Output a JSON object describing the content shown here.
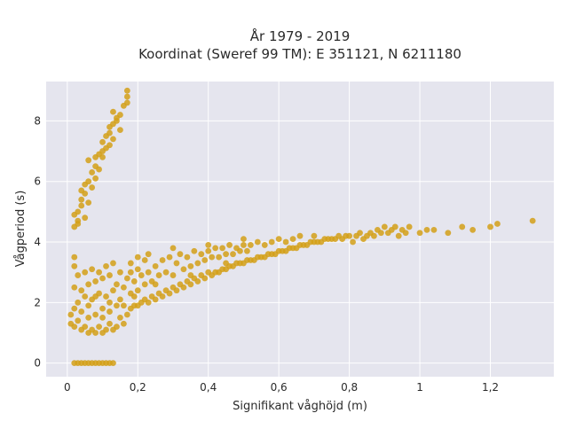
{
  "chart_data": {
    "type": "scatter",
    "title_line1": "År 1979 - 2019",
    "title_line2": "Koordinat (Sweref 99 TM): E 351121, N 6211180",
    "xlabel": "Signifikant våghöjd (m)",
    "ylabel": "Vågperiod (s)",
    "xlim": [
      -0.06,
      1.38
    ],
    "ylim": [
      -0.45,
      9.3
    ],
    "x_ticks": [
      {
        "value": 0,
        "label": "0"
      },
      {
        "value": 0.2,
        "label": "0,2"
      },
      {
        "value": 0.4,
        "label": "0,4"
      },
      {
        "value": 0.6,
        "label": "0,6"
      },
      {
        "value": 0.8,
        "label": "0,8"
      },
      {
        "value": 1.0,
        "label": "1"
      },
      {
        "value": 1.2,
        "label": "1,2"
      }
    ],
    "y_ticks": [
      {
        "value": 0,
        "label": "0"
      },
      {
        "value": 2,
        "label": "2"
      },
      {
        "value": 4,
        "label": "4"
      },
      {
        "value": 6,
        "label": "6"
      },
      {
        "value": 8,
        "label": "8"
      }
    ],
    "grid": true,
    "marker_color": "#D4A017",
    "plot_background": "#E5E5EE",
    "series": [
      {
        "points": [
          [
            0.02,
            4.5
          ],
          [
            0.02,
            4.9
          ],
          [
            0.03,
            5.0
          ],
          [
            0.03,
            4.7
          ],
          [
            0.04,
            5.2
          ],
          [
            0.04,
            5.4
          ],
          [
            0.05,
            5.6
          ],
          [
            0.05,
            5.9
          ],
          [
            0.06,
            6.0
          ],
          [
            0.06,
            5.3
          ],
          [
            0.07,
            6.3
          ],
          [
            0.07,
            5.8
          ],
          [
            0.08,
            6.5
          ],
          [
            0.08,
            6.1
          ],
          [
            0.09,
            6.9
          ],
          [
            0.09,
            6.4
          ],
          [
            0.1,
            7.0
          ],
          [
            0.1,
            7.3
          ],
          [
            0.11,
            7.5
          ],
          [
            0.11,
            7.1
          ],
          [
            0.12,
            7.6
          ],
          [
            0.12,
            7.8
          ],
          [
            0.13,
            7.9
          ],
          [
            0.13,
            7.4
          ],
          [
            0.14,
            8.0
          ],
          [
            0.14,
            8.1
          ],
          [
            0.15,
            8.2
          ],
          [
            0.15,
            7.7
          ],
          [
            0.16,
            8.5
          ],
          [
            0.17,
            8.6
          ],
          [
            0.17,
            8.8
          ],
          [
            0.17,
            9.0
          ],
          [
            0.04,
            5.7
          ],
          [
            0.06,
            6.7
          ],
          [
            0.08,
            6.8
          ],
          [
            0.05,
            4.8
          ],
          [
            0.03,
            4.6
          ],
          [
            0.1,
            6.8
          ],
          [
            0.12,
            7.2
          ],
          [
            0.13,
            8.3
          ],
          [
            0.02,
            0.0
          ],
          [
            0.03,
            0.0
          ],
          [
            0.04,
            0.0
          ],
          [
            0.05,
            0.0
          ],
          [
            0.06,
            0.0
          ],
          [
            0.07,
            0.0
          ],
          [
            0.08,
            0.0
          ],
          [
            0.09,
            0.0
          ],
          [
            0.1,
            0.0
          ],
          [
            0.11,
            0.0
          ],
          [
            0.12,
            0.0
          ],
          [
            0.13,
            0.0
          ],
          [
            0.01,
            1.6
          ],
          [
            0.01,
            1.3
          ],
          [
            0.02,
            1.2
          ],
          [
            0.02,
            1.8
          ],
          [
            0.02,
            2.5
          ],
          [
            0.02,
            3.2
          ],
          [
            0.02,
            3.5
          ],
          [
            0.03,
            2.0
          ],
          [
            0.03,
            1.4
          ],
          [
            0.03,
            2.9
          ],
          [
            0.04,
            1.1
          ],
          [
            0.04,
            1.7
          ],
          [
            0.04,
            2.4
          ],
          [
            0.05,
            1.2
          ],
          [
            0.05,
            2.2
          ],
          [
            0.05,
            3.0
          ],
          [
            0.06,
            1.0
          ],
          [
            0.06,
            1.9
          ],
          [
            0.06,
            2.6
          ],
          [
            0.07,
            1.1
          ],
          [
            0.07,
            2.1
          ],
          [
            0.07,
            3.1
          ],
          [
            0.08,
            1.0
          ],
          [
            0.08,
            1.6
          ],
          [
            0.08,
            2.7
          ],
          [
            0.09,
            1.2
          ],
          [
            0.09,
            2.3
          ],
          [
            0.09,
            3.0
          ],
          [
            0.1,
            1.0
          ],
          [
            0.1,
            1.8
          ],
          [
            0.1,
            2.8
          ],
          [
            0.11,
            1.1
          ],
          [
            0.11,
            2.2
          ],
          [
            0.11,
            3.2
          ],
          [
            0.12,
            1.3
          ],
          [
            0.12,
            2.0
          ],
          [
            0.12,
            2.9
          ],
          [
            0.13,
            1.1
          ],
          [
            0.13,
            2.4
          ],
          [
            0.13,
            3.3
          ],
          [
            0.14,
            1.2
          ],
          [
            0.14,
            2.6
          ],
          [
            0.15,
            1.5
          ],
          [
            0.15,
            2.1
          ],
          [
            0.15,
            3.0
          ],
          [
            0.16,
            1.3
          ],
          [
            0.16,
            2.5
          ],
          [
            0.17,
            1.6
          ],
          [
            0.17,
            2.8
          ],
          [
            0.18,
            1.8
          ],
          [
            0.18,
            2.3
          ],
          [
            0.18,
            3.3
          ],
          [
            0.19,
            1.9
          ],
          [
            0.19,
            2.7
          ],
          [
            0.2,
            1.9
          ],
          [
            0.2,
            2.4
          ],
          [
            0.2,
            3.1
          ],
          [
            0.21,
            2.0
          ],
          [
            0.21,
            2.9
          ],
          [
            0.22,
            2.1
          ],
          [
            0.22,
            2.6
          ],
          [
            0.22,
            3.4
          ],
          [
            0.23,
            2.0
          ],
          [
            0.23,
            3.0
          ],
          [
            0.24,
            2.2
          ],
          [
            0.24,
            2.7
          ],
          [
            0.25,
            2.1
          ],
          [
            0.25,
            3.2
          ],
          [
            0.26,
            2.3
          ],
          [
            0.26,
            2.9
          ],
          [
            0.27,
            2.2
          ],
          [
            0.27,
            3.4
          ],
          [
            0.28,
            2.4
          ],
          [
            0.28,
            3.0
          ],
          [
            0.29,
            2.3
          ],
          [
            0.29,
            3.5
          ],
          [
            0.3,
            2.5
          ],
          [
            0.3,
            2.9
          ],
          [
            0.31,
            2.4
          ],
          [
            0.31,
            3.3
          ],
          [
            0.32,
            2.6
          ],
          [
            0.32,
            3.6
          ],
          [
            0.33,
            2.5
          ],
          [
            0.33,
            3.1
          ],
          [
            0.34,
            2.7
          ],
          [
            0.34,
            3.5
          ],
          [
            0.35,
            2.6
          ],
          [
            0.35,
            3.2
          ],
          [
            0.36,
            2.8
          ],
          [
            0.36,
            3.7
          ],
          [
            0.37,
            2.7
          ],
          [
            0.37,
            3.3
          ],
          [
            0.38,
            2.9
          ],
          [
            0.38,
            3.6
          ],
          [
            0.39,
            2.8
          ],
          [
            0.39,
            3.4
          ],
          [
            0.4,
            3.0
          ],
          [
            0.4,
            3.7
          ],
          [
            0.41,
            2.9
          ],
          [
            0.41,
            3.5
          ],
          [
            0.42,
            3.0
          ],
          [
            0.42,
            3.8
          ],
          [
            0.43,
            3.0
          ],
          [
            0.43,
            3.5
          ],
          [
            0.44,
            3.1
          ],
          [
            0.44,
            3.8
          ],
          [
            0.45,
            3.1
          ],
          [
            0.45,
            3.6
          ],
          [
            0.46,
            3.2
          ],
          [
            0.46,
            3.9
          ],
          [
            0.47,
            3.2
          ],
          [
            0.47,
            3.6
          ],
          [
            0.48,
            3.3
          ],
          [
            0.48,
            3.8
          ],
          [
            0.49,
            3.3
          ],
          [
            0.49,
            3.7
          ],
          [
            0.5,
            3.3
          ],
          [
            0.5,
            3.9
          ],
          [
            0.51,
            3.4
          ],
          [
            0.51,
            3.7
          ],
          [
            0.52,
            3.4
          ],
          [
            0.52,
            3.9
          ],
          [
            0.53,
            3.4
          ],
          [
            0.54,
            3.5
          ],
          [
            0.54,
            4.0
          ],
          [
            0.55,
            3.5
          ],
          [
            0.56,
            3.5
          ],
          [
            0.56,
            3.9
          ],
          [
            0.57,
            3.6
          ],
          [
            0.58,
            3.6
          ],
          [
            0.58,
            4.0
          ],
          [
            0.59,
            3.6
          ],
          [
            0.6,
            3.7
          ],
          [
            0.6,
            4.1
          ],
          [
            0.61,
            3.7
          ],
          [
            0.62,
            3.7
          ],
          [
            0.62,
            4.0
          ],
          [
            0.63,
            3.8
          ],
          [
            0.64,
            3.8
          ],
          [
            0.64,
            4.1
          ],
          [
            0.65,
            3.8
          ],
          [
            0.66,
            3.9
          ],
          [
            0.66,
            4.2
          ],
          [
            0.67,
            3.9
          ],
          [
            0.68,
            3.9
          ],
          [
            0.69,
            4.0
          ],
          [
            0.7,
            4.0
          ],
          [
            0.7,
            4.2
          ],
          [
            0.71,
            4.0
          ],
          [
            0.72,
            4.0
          ],
          [
            0.73,
            4.1
          ],
          [
            0.74,
            4.1
          ],
          [
            0.75,
            4.1
          ],
          [
            0.76,
            4.1
          ],
          [
            0.77,
            4.2
          ],
          [
            0.78,
            4.1
          ],
          [
            0.79,
            4.2
          ],
          [
            0.8,
            4.2
          ],
          [
            0.81,
            4.0
          ],
          [
            0.82,
            4.2
          ],
          [
            0.83,
            4.3
          ],
          [
            0.84,
            4.1
          ],
          [
            0.85,
            4.2
          ],
          [
            0.86,
            4.3
          ],
          [
            0.87,
            4.2
          ],
          [
            0.88,
            4.4
          ],
          [
            0.89,
            4.3
          ],
          [
            0.9,
            4.5
          ],
          [
            0.91,
            4.3
          ],
          [
            0.92,
            4.4
          ],
          [
            0.93,
            4.5
          ],
          [
            0.94,
            4.2
          ],
          [
            0.95,
            4.4
          ],
          [
            0.96,
            4.3
          ],
          [
            0.97,
            4.5
          ],
          [
            1.0,
            4.3
          ],
          [
            1.02,
            4.4
          ],
          [
            1.04,
            4.4
          ],
          [
            1.08,
            4.3
          ],
          [
            1.12,
            4.5
          ],
          [
            1.15,
            4.4
          ],
          [
            1.2,
            4.5
          ],
          [
            1.22,
            4.6
          ],
          [
            1.32,
            4.7
          ],
          [
            0.18,
            3.0
          ],
          [
            0.2,
            3.5
          ],
          [
            0.23,
            3.6
          ],
          [
            0.3,
            3.8
          ],
          [
            0.4,
            3.9
          ],
          [
            0.5,
            4.1
          ],
          [
            0.1,
            1.5
          ],
          [
            0.12,
            1.7
          ],
          [
            0.08,
            2.2
          ],
          [
            0.06,
            1.5
          ],
          [
            0.14,
            1.9
          ],
          [
            0.16,
            1.9
          ],
          [
            0.19,
            2.2
          ],
          [
            0.25,
            2.6
          ],
          [
            0.35,
            2.9
          ],
          [
            0.45,
            3.3
          ]
        ]
      }
    ]
  }
}
